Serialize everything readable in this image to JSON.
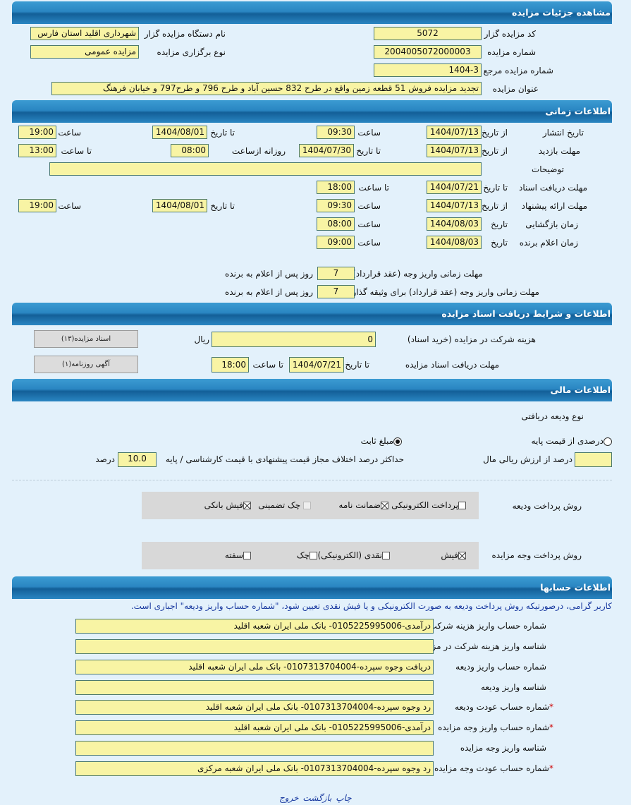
{
  "sections": {
    "details": "مشاهده جزئیات مزایده",
    "timing": "اطلاعات زمانی",
    "docs": "اطلاعات و شرایط دریافت اسناد مزایده",
    "finance": "اطلاعات مالی",
    "accounts": "اطلاعات حسابها"
  },
  "details": {
    "code_label": "کد مزایده گزار",
    "code": "5072",
    "org_label": "نام دستگاه مزایده گزار",
    "org": "شهرداری اقلید استان فارس",
    "number_label": "شماره مزایده",
    "number": "2004005072000003",
    "type_label": "نوع برگزاری مزایده",
    "type": "مزایده عمومی",
    "ref_label": "شماره مزایده مرجع",
    "ref": "1404-3",
    "title_label": "عنوان مزایده",
    "title": "تجدید مزایده فروش 51 قطعه زمین واقع در طرح 832 حسین آباد و طرح 796 و طرح797 و خیابان فرهنگ"
  },
  "timing": {
    "publish": {
      "label": "تاریخ انتشار",
      "from_label": "از تاریخ",
      "from": "1404/07/13",
      "time_label": "ساعت",
      "time": "09:30",
      "to_label": "تا تاریخ",
      "to": "1404/08/01",
      "to_time_label": "ساعت",
      "to_time": "19:00"
    },
    "visit": {
      "label": "مهلت بازدید",
      "from_label": "از تاریخ",
      "from": "1404/07/13",
      "to_label": "تا تاریخ",
      "to": "1404/07/30",
      "daily_label": "روزانه ازساعت",
      "daily_from": "08:00",
      "daily_to_label": "تا ساعت",
      "daily_to": "13:00"
    },
    "notes_label": "توضیحات",
    "notes": "",
    "docs": {
      "label": "مهلت دریافت اسناد",
      "to_label": "تا تاریخ",
      "to": "1404/07/21",
      "time_label": "تا ساعت",
      "time": "18:00"
    },
    "offer": {
      "label": "مهلت ارائه پیشنهاد",
      "from_label": "از تاریخ",
      "from": "1404/07/13",
      "time_label": "ساعت",
      "time": "09:30",
      "to_label": "تا تاریخ",
      "to": "1404/08/01",
      "to_time_label": "ساعت",
      "to_time": "19:00"
    },
    "opening": {
      "label": "زمان بازگشایی",
      "date_label": "تاریخ",
      "date": "1404/08/03",
      "time_label": "ساعت",
      "time": "08:00"
    },
    "winner": {
      "label": "زمان اعلام برنده",
      "date_label": "تاریخ",
      "date": "1404/08/03",
      "time_label": "ساعت",
      "time": "09:00"
    },
    "pay_deadline": {
      "label": "مهلت زمانی واریز وجه (عقد قرارداد)",
      "value": "7",
      "suffix": "روز پس از اعلام به برنده"
    },
    "pay_deadline_collateral": {
      "label": "مهلت زمانی واریز وجه (عقد قرارداد) برای وثیقه گذار",
      "value": "7",
      "suffix": "روز پس از اعلام به برنده"
    }
  },
  "docs": {
    "fee_label": "هزینه شرکت در مزایده (خرید اسناد)",
    "fee": "0",
    "currency": "ریال",
    "deadline_label": "مهلت دریافت اسناد مزایده",
    "to_label": "تا تاریخ",
    "to": "1404/07/21",
    "time_label": "تا ساعت",
    "time": "18:00",
    "btn_docs": "اسناد مزایده(۱۳)",
    "btn_ad": "آگهی روزنامه(۱)"
  },
  "finance": {
    "deposit_type_label": "نوع ودیعه دریافتی",
    "radio_percent": "درصدی از قیمت پایه",
    "radio_fixed": "مبلغ ثابت",
    "selected": "مبلغ ثابت",
    "percent_value": "",
    "percent_suffix": "درصد از ارزش ریالی مال",
    "max_diff_label": "حداکثر درصد اختلاف مجاز قیمت پیشنهادی با قیمت کارشناسی / پایه",
    "max_diff": "10.0",
    "max_diff_unit": "درصد",
    "deposit_method_label": "روش پرداخت ودیعه",
    "deposit_methods": [
      {
        "label": "پرداخت الکترونیکی",
        "checked": false
      },
      {
        "label": "ضمانت نامه",
        "checked": true
      },
      {
        "label": "چک تضمینی",
        "checked": false
      },
      {
        "label": "فیش بانکی",
        "checked": true
      }
    ],
    "payment_method_label": "روش پرداخت وجه مزایده",
    "payment_methods": [
      {
        "label": "فیش",
        "checked": true
      },
      {
        "label": "نقدی (الکترونیکی)",
        "checked": false
      },
      {
        "label": "چک",
        "checked": false
      },
      {
        "label": "سفته",
        "checked": false
      }
    ]
  },
  "accounts": {
    "notice": "کاربر گرامی، درصورتیکه روش پرداخت ودیعه به صورت الکترونیکی و یا فیش نقدی تعیین شود، \"شماره حساب واریز ودیعه\" اجباری است.",
    "rows": [
      {
        "label": "شماره حساب واریز هزینه شرکت در مزایده",
        "value": "درآمدی-0105225995006- بانک ملی ایران شعبه اقلید",
        "required": false
      },
      {
        "label": "شناسه واریز هزینه شرکت در مزایده",
        "value": "",
        "required": false
      },
      {
        "label": "شماره حساب واریز ودیعه",
        "value": "دریافت وجوه سپرده-0107313704004- بانک ملی ایران شعبه اقلید",
        "required": false
      },
      {
        "label": "شناسه واریز ودیعه",
        "value": "",
        "required": false
      },
      {
        "label": "شماره حساب عودت ودیعه",
        "value": "رد وجوه سپرده-0107313704004- بانک ملی ایران شعبه اقلید",
        "required": true
      },
      {
        "label": "شماره حساب واریز وجه مزایده",
        "value": "درآمدی-0105225995006- بانک ملی ایران شعبه اقلید",
        "required": true
      },
      {
        "label": "شناسه واریز وجه مزایده",
        "value": "",
        "required": false
      },
      {
        "label": "شماره حساب عودت وجه مزایده",
        "value": "رد وجوه سپرده-0107313704004- بانک ملی ایران شعبه مرکزی",
        "required": true
      }
    ],
    "required_mark": "*"
  },
  "footer": {
    "print": "چاپ",
    "back": "بازگشت",
    "exit": "خروج"
  }
}
